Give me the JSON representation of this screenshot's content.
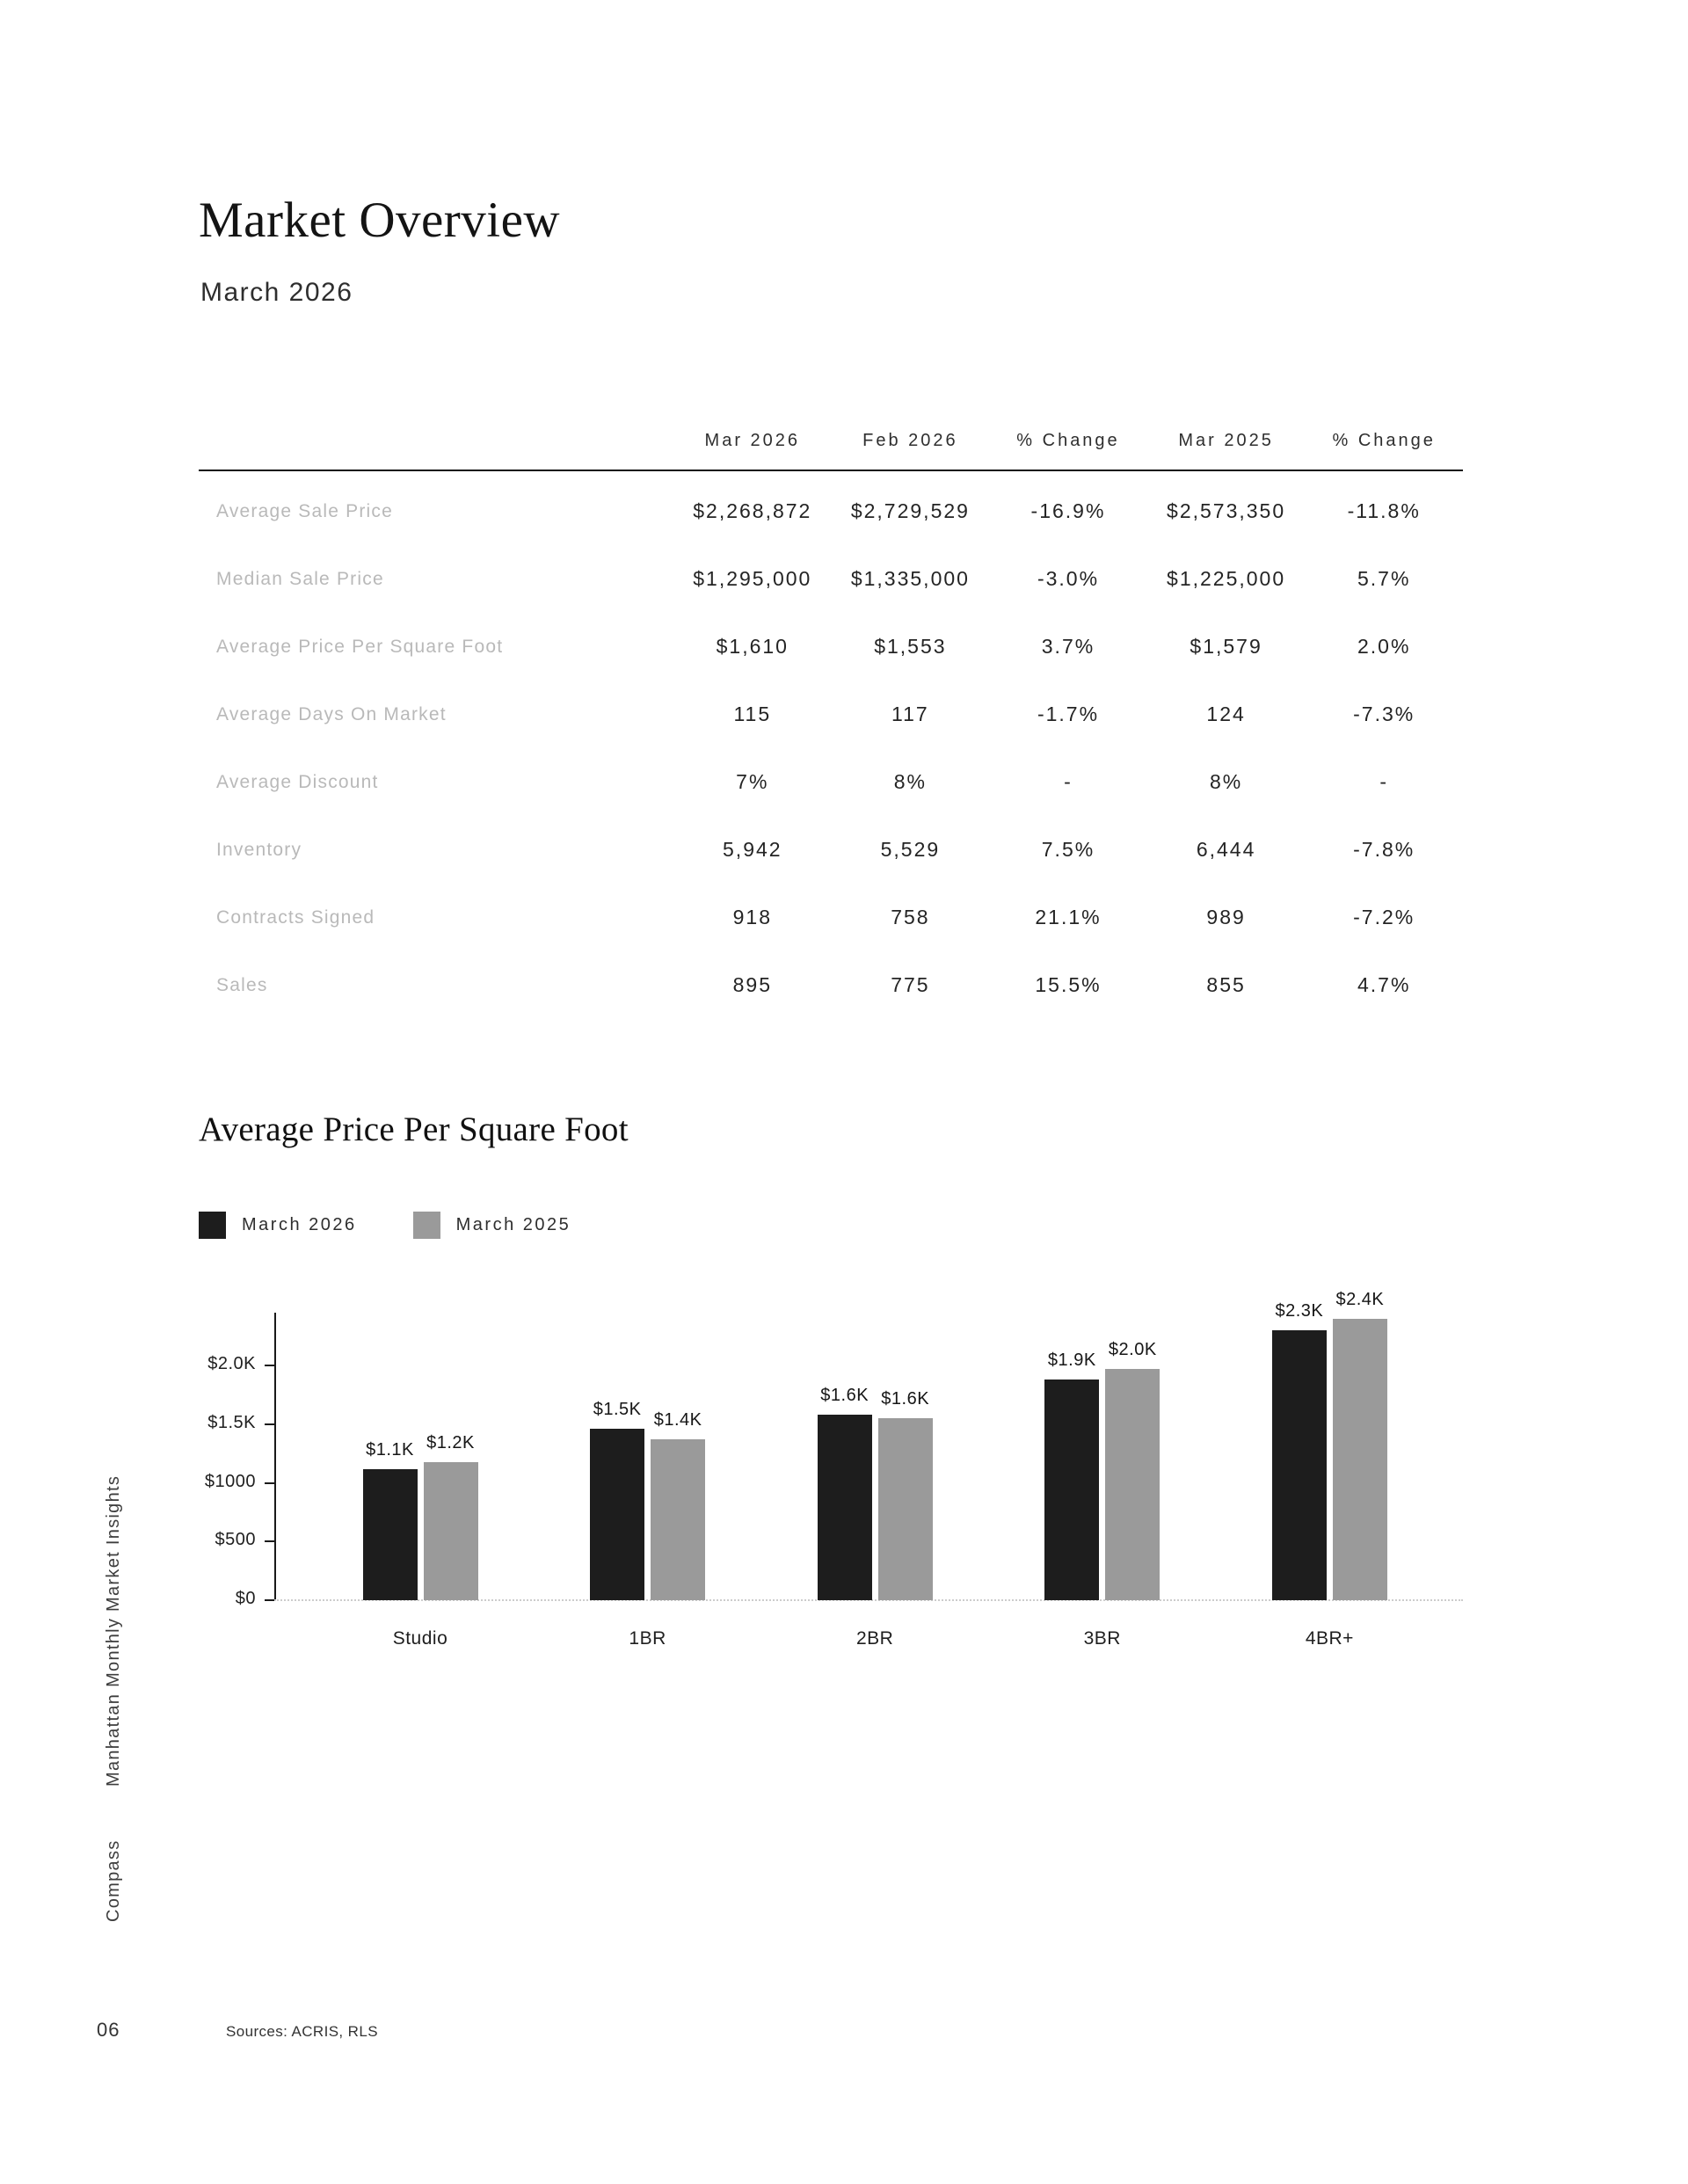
{
  "page": {
    "title": "Market Overview",
    "subtitle": "March 2026",
    "page_number": "06",
    "sources": "Sources: ACRIS, RLS",
    "sidebar_text": "Manhattan Monthly Market Insights",
    "brand": "Compass"
  },
  "table": {
    "columns": [
      "Mar 2026",
      "Feb 2026",
      "% Change",
      "Mar 2025",
      "% Change"
    ],
    "rows": [
      {
        "label": "Average Sale Price",
        "values": [
          "$2,268,872",
          "$2,729,529",
          "-16.9%",
          "$2,573,350",
          "-11.8%"
        ]
      },
      {
        "label": "Median Sale Price",
        "values": [
          "$1,295,000",
          "$1,335,000",
          "-3.0%",
          "$1,225,000",
          "5.7%"
        ]
      },
      {
        "label": "Average Price Per Square Foot",
        "values": [
          "$1,610",
          "$1,553",
          "3.7%",
          "$1,579",
          "2.0%"
        ]
      },
      {
        "label": "Average Days On Market",
        "values": [
          "115",
          "117",
          "-1.7%",
          "124",
          "-7.3%"
        ]
      },
      {
        "label": "Average Discount",
        "values": [
          "7%",
          "8%",
          "-",
          "8%",
          "-"
        ]
      },
      {
        "label": "Inventory",
        "values": [
          "5,942",
          "5,529",
          "7.5%",
          "6,444",
          "-7.8%"
        ]
      },
      {
        "label": "Contracts Signed",
        "values": [
          "918",
          "758",
          "21.1%",
          "989",
          "-7.2%"
        ]
      },
      {
        "label": "Sales",
        "values": [
          "895",
          "775",
          "15.5%",
          "855",
          "4.7%"
        ]
      }
    ]
  },
  "chart": {
    "heading": "Average Price Per Square Foot"
  },
  "chart_data": {
    "type": "bar",
    "title": "Average Price Per Square Foot",
    "categories": [
      "Studio",
      "1BR",
      "2BR",
      "3BR",
      "4BR+"
    ],
    "series": [
      {
        "name": "March 2026",
        "color": "#1d1d1d",
        "values": [
          1120,
          1460,
          1580,
          1880,
          2300
        ],
        "labels": [
          "$1.1K",
          "$1.5K",
          "$1.6K",
          "$1.9K",
          "$2.3K"
        ]
      },
      {
        "name": "March 2025",
        "color": "#9a9a9a",
        "values": [
          1180,
          1370,
          1550,
          1970,
          2400
        ],
        "labels": [
          "$1.2K",
          "$1.4K",
          "$1.6K",
          "$2.0K",
          "$2.4K"
        ]
      }
    ],
    "y_ticks": [
      {
        "value": 0,
        "label": "$0"
      },
      {
        "value": 500,
        "label": "$500"
      },
      {
        "value": 1000,
        "label": "$1000"
      },
      {
        "value": 1500,
        "label": "$1.5K"
      },
      {
        "value": 2000,
        "label": "$2.0K"
      }
    ],
    "ylim": [
      0,
      2450
    ],
    "xlabel": "",
    "ylabel": "",
    "grid": false,
    "legend_position": "top-left"
  }
}
